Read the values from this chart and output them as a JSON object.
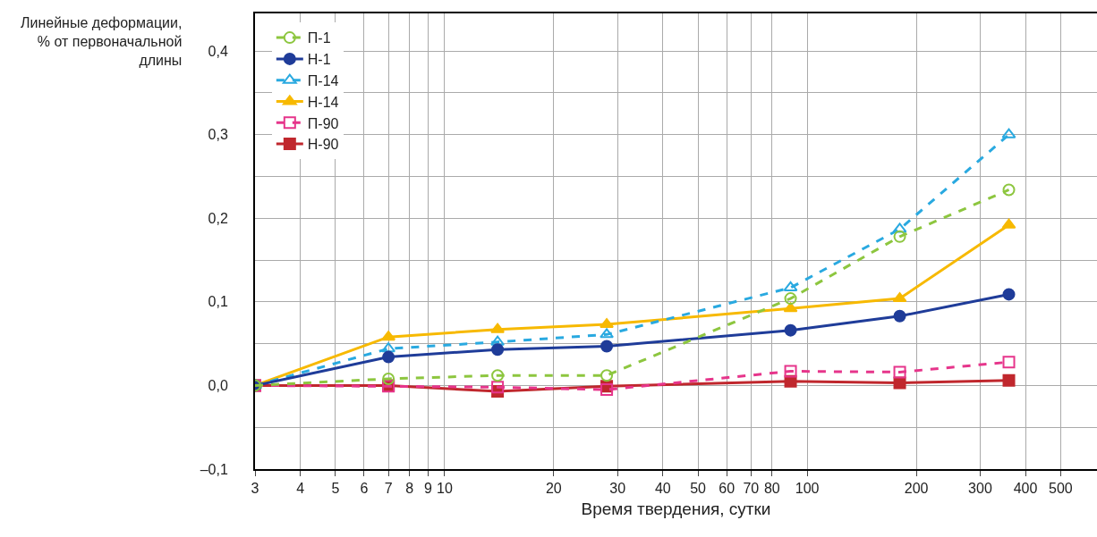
{
  "chart_data": {
    "type": "line",
    "xlabel": "Время твердения, сутки",
    "ylabel": "Линейные деформации,\n% от первоначальной\nдлины",
    "log": "x",
    "grid": true,
    "legend": "top left",
    "xlim": [
      3,
      630
    ],
    "xticks": [
      3,
      4,
      5,
      6,
      7,
      8,
      9,
      10,
      20,
      30,
      40,
      50,
      60,
      70,
      80,
      100,
      200,
      300,
      400,
      500
    ],
    "ylim": [
      -0.1,
      0.445
    ],
    "yticks": [
      {
        "value": -0.1,
        "label": "–0,1"
      },
      {
        "value": -0.05,
        "label": null
      },
      {
        "value": 0,
        "label": "0,0"
      },
      {
        "value": 0.05,
        "label": null
      },
      {
        "value": 0.1,
        "label": "0,1"
      },
      {
        "value": 0.15,
        "label": null
      },
      {
        "value": 0.2,
        "label": "0,2"
      },
      {
        "value": 0.25,
        "label": null
      },
      {
        "value": 0.3,
        "label": "0,3"
      },
      {
        "value": 0.35,
        "label": null
      },
      {
        "value": 0.4,
        "label": "0,4"
      }
    ],
    "x": [
      3,
      7,
      14,
      28,
      90,
      180,
      360
    ],
    "series": [
      {
        "name": "П-1",
        "color": "#8dc63f",
        "marker": "circle-open",
        "line_style": "dashed",
        "values": [
          0,
          0.008,
          0.012,
          0.012,
          0.104,
          0.178,
          0.234
        ]
      },
      {
        "name": "Н-1",
        "color": "#1f3c99",
        "marker": "circle",
        "line_style": "solid",
        "values": [
          0,
          0.034,
          0.043,
          0.047,
          0.066,
          0.083,
          0.109
        ]
      },
      {
        "name": "П-14",
        "color": "#29a9e0",
        "marker": "triangle-up-open",
        "line_style": "dashed",
        "values": [
          0,
          0.044,
          0.052,
          0.061,
          0.117,
          0.187,
          0.3
        ]
      },
      {
        "name": "Н-14",
        "color": "#f7b900",
        "marker": "triangle-up",
        "line_style": "solid",
        "values": [
          0,
          0.058,
          0.067,
          0.073,
          0.092,
          0.104,
          0.192
        ]
      },
      {
        "name": "П-90",
        "color": "#e6358b",
        "marker": "square-open",
        "line_style": "dashed",
        "values": [
          0,
          -0.001,
          -0.002,
          -0.005,
          0.017,
          0.016,
          0.028
        ]
      },
      {
        "name": "Н-90",
        "color": "#c0272d",
        "marker": "square",
        "line_style": "solid",
        "values": [
          0,
          0,
          -0.007,
          -0.001,
          0.005,
          0.003,
          0.006
        ]
      }
    ]
  }
}
